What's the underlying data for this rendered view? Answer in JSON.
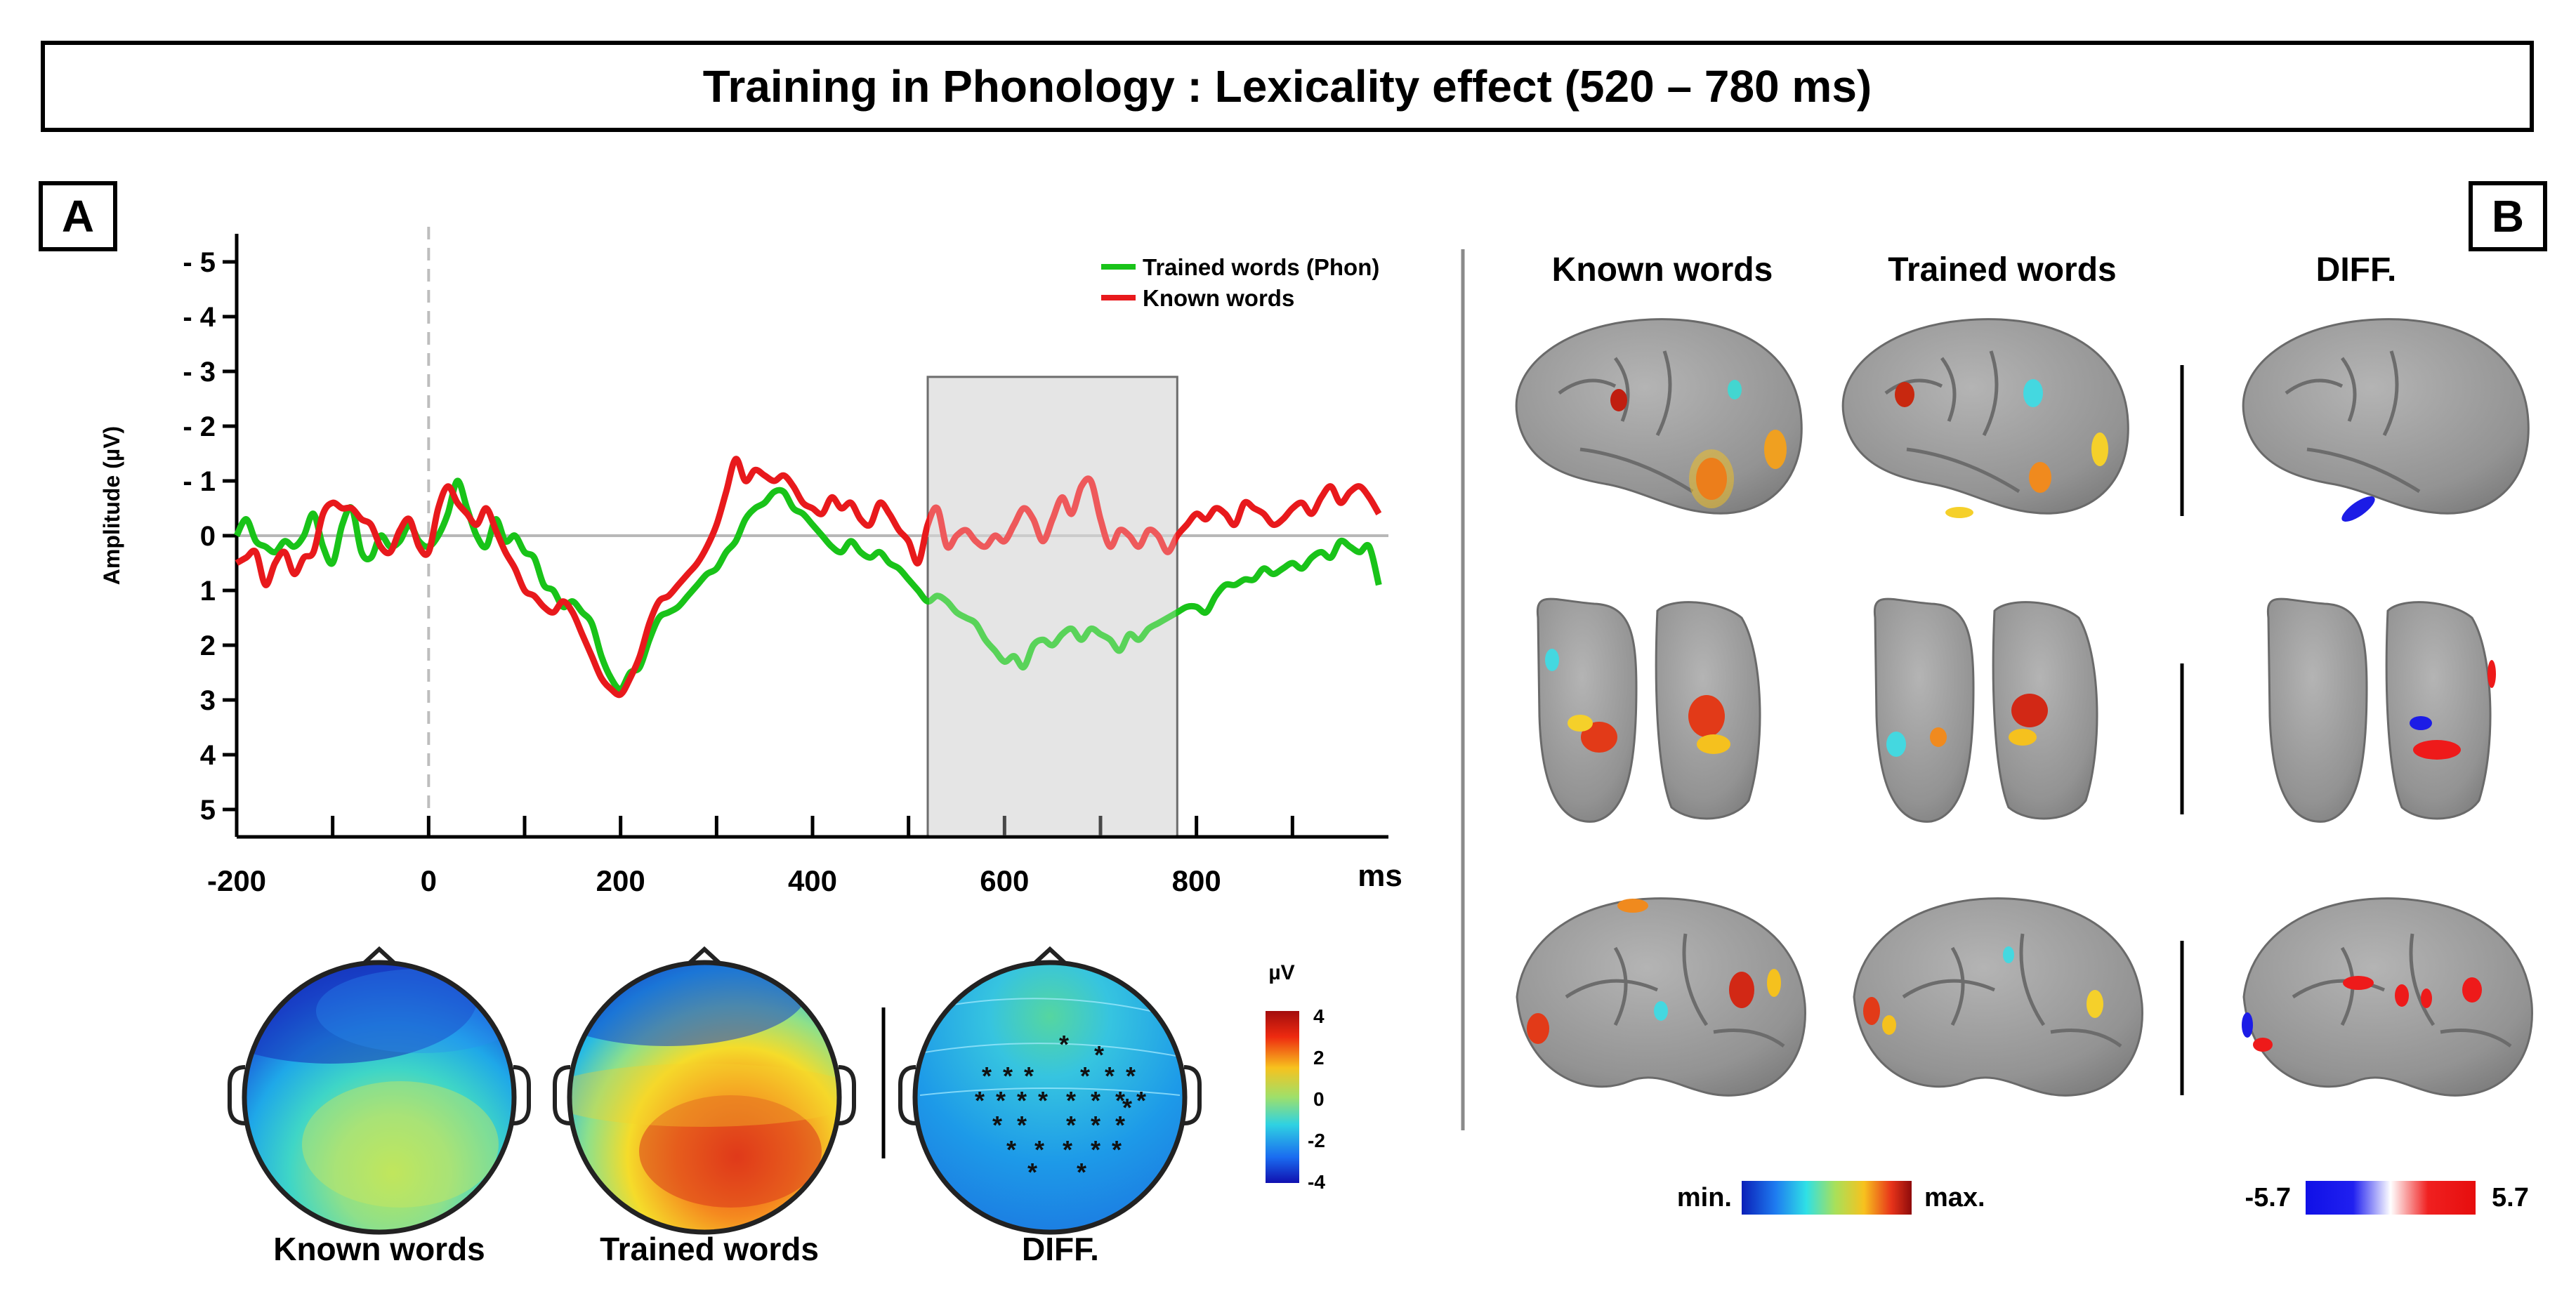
{
  "title": "Training in Phonology : Lexicality effect (520 – 780 ms)",
  "panel_a_label": "A",
  "panel_b_label": "B",
  "chart_data": {
    "type": "line",
    "title": "",
    "xlabel": "ms",
    "ylabel": "Amplitude (µV)",
    "xlim": [
      -200,
      1000
    ],
    "ylim": [
      -5,
      5
    ],
    "y_inverted": true,
    "x_ticks": [
      -200,
      0,
      200,
      400,
      600,
      800
    ],
    "y_ticks": [
      "- 5",
      "- 4",
      "- 3",
      "- 2",
      "- 1",
      "0",
      "1",
      "2",
      "3",
      "4",
      "5"
    ],
    "y_tick_values": [
      -5,
      -4,
      -3,
      -2,
      -1,
      0,
      1,
      2,
      3,
      4,
      5
    ],
    "highlight_window": [
      520,
      780
    ],
    "legend": [
      "Trained words (Phon)",
      "Known words"
    ],
    "series": [
      {
        "name": "Trained words (Phon)",
        "color": "#19c319",
        "x": [
          -200,
          -190,
          -180,
          -170,
          -160,
          -150,
          -140,
          -130,
          -120,
          -110,
          -100,
          -90,
          -80,
          -70,
          -60,
          -50,
          -40,
          -30,
          -20,
          -10,
          0,
          10,
          20,
          30,
          40,
          50,
          60,
          70,
          80,
          90,
          100,
          110,
          120,
          130,
          140,
          150,
          160,
          170,
          180,
          190,
          200,
          210,
          220,
          230,
          240,
          250,
          260,
          270,
          280,
          290,
          300,
          310,
          320,
          330,
          340,
          350,
          360,
          370,
          380,
          390,
          400,
          410,
          420,
          430,
          440,
          450,
          460,
          470,
          480,
          490,
          500,
          510,
          520,
          530,
          540,
          550,
          560,
          570,
          580,
          590,
          600,
          610,
          620,
          630,
          640,
          650,
          660,
          670,
          680,
          690,
          700,
          710,
          720,
          730,
          740,
          750,
          760,
          770,
          780,
          790,
          800,
          810,
          820,
          830,
          840,
          850,
          860,
          870,
          880,
          890,
          900,
          910,
          920,
          930,
          940,
          950,
          960,
          970,
          980,
          990
        ],
        "y": [
          0.0,
          -0.3,
          0.1,
          0.2,
          0.3,
          0.1,
          0.2,
          0.0,
          -0.4,
          0.2,
          0.5,
          -0.2,
          -0.5,
          0.3,
          0.4,
          0.0,
          0.2,
          0.1,
          -0.2,
          0.1,
          0.2,
          0.0,
          -0.4,
          -1.0,
          -0.5,
          0.0,
          0.2,
          -0.3,
          0.1,
          0.0,
          0.3,
          0.4,
          0.9,
          1.0,
          1.3,
          1.2,
          1.4,
          1.6,
          2.2,
          2.6,
          2.8,
          2.5,
          2.4,
          1.9,
          1.5,
          1.4,
          1.3,
          1.1,
          0.9,
          0.7,
          0.6,
          0.3,
          0.1,
          -0.3,
          -0.5,
          -0.6,
          -0.8,
          -0.8,
          -0.5,
          -0.4,
          -0.2,
          0.0,
          0.2,
          0.3,
          0.1,
          0.3,
          0.4,
          0.3,
          0.5,
          0.6,
          0.8,
          1.0,
          1.2,
          1.1,
          1.2,
          1.4,
          1.5,
          1.6,
          1.9,
          2.1,
          2.3,
          2.2,
          2.4,
          2.0,
          1.9,
          2.0,
          1.8,
          1.7,
          1.9,
          1.7,
          1.8,
          1.9,
          2.1,
          1.8,
          1.9,
          1.7,
          1.6,
          1.5,
          1.4,
          1.3,
          1.3,
          1.4,
          1.1,
          0.9,
          0.9,
          0.8,
          0.8,
          0.6,
          0.7,
          0.6,
          0.5,
          0.6,
          0.4,
          0.3,
          0.4,
          0.1,
          0.2,
          0.3,
          0.2,
          0.9
        ]
      },
      {
        "name": "Known words",
        "color": "#e8191c",
        "x": [
          -200,
          -190,
          -180,
          -170,
          -160,
          -150,
          -140,
          -130,
          -120,
          -110,
          -100,
          -90,
          -80,
          -70,
          -60,
          -50,
          -40,
          -30,
          -20,
          -10,
          0,
          10,
          20,
          30,
          40,
          50,
          60,
          70,
          80,
          90,
          100,
          110,
          120,
          130,
          140,
          150,
          160,
          170,
          180,
          190,
          200,
          210,
          220,
          230,
          240,
          250,
          260,
          270,
          280,
          290,
          300,
          310,
          320,
          330,
          340,
          350,
          360,
          370,
          380,
          390,
          400,
          410,
          420,
          430,
          440,
          450,
          460,
          470,
          480,
          490,
          500,
          510,
          520,
          530,
          540,
          550,
          560,
          570,
          580,
          590,
          600,
          610,
          620,
          630,
          640,
          650,
          660,
          670,
          680,
          690,
          700,
          710,
          720,
          730,
          740,
          750,
          760,
          770,
          780,
          790,
          800,
          810,
          820,
          830,
          840,
          850,
          860,
          870,
          880,
          890,
          900,
          910,
          920,
          930,
          940,
          950,
          960,
          970,
          980,
          990
        ],
        "y": [
          0.5,
          0.4,
          0.3,
          0.9,
          0.5,
          0.3,
          0.7,
          0.4,
          0.3,
          -0.4,
          -0.6,
          -0.5,
          -0.5,
          -0.3,
          -0.2,
          0.2,
          0.3,
          -0.1,
          -0.3,
          0.2,
          0.3,
          -0.5,
          -0.9,
          -0.6,
          -0.4,
          -0.2,
          -0.5,
          -0.1,
          0.3,
          0.6,
          1.0,
          1.1,
          1.3,
          1.4,
          1.2,
          1.4,
          1.8,
          2.2,
          2.6,
          2.8,
          2.9,
          2.6,
          2.2,
          1.6,
          1.2,
          1.1,
          0.9,
          0.7,
          0.5,
          0.2,
          -0.2,
          -0.8,
          -1.4,
          -1.0,
          -1.2,
          -1.1,
          -1.0,
          -1.1,
          -0.9,
          -0.6,
          -0.5,
          -0.4,
          -0.7,
          -0.5,
          -0.6,
          -0.3,
          -0.2,
          -0.6,
          -0.4,
          -0.1,
          0.1,
          0.5,
          -0.2,
          -0.5,
          0.2,
          0.0,
          -0.1,
          0.1,
          0.2,
          0.0,
          0.1,
          -0.2,
          -0.5,
          -0.3,
          0.1,
          -0.3,
          -0.7,
          -0.4,
          -0.9,
          -1.0,
          -0.3,
          0.2,
          -0.1,
          0.0,
          0.2,
          -0.1,
          0.0,
          0.3,
          0.0,
          -0.2,
          -0.4,
          -0.3,
          -0.5,
          -0.4,
          -0.2,
          -0.6,
          -0.5,
          -0.4,
          -0.2,
          -0.3,
          -0.5,
          -0.6,
          -0.4,
          -0.7,
          -0.9,
          -0.6,
          -0.8,
          -0.9,
          -0.7,
          -0.4
        ]
      }
    ]
  },
  "topomaps": {
    "labels": [
      "Known words",
      "Trained words",
      "DIFF."
    ],
    "colorbar_title": "µV",
    "colorbar_ticks": [
      "4",
      "2",
      "0",
      "-2",
      "-4"
    ]
  },
  "brain": {
    "column_headers": [
      "Known words",
      "Trained words",
      "DIFF."
    ],
    "scale_min_label": "min.",
    "scale_max_label": "max.",
    "diff_scale_min": "-5.7",
    "diff_scale_max": "5.7"
  }
}
